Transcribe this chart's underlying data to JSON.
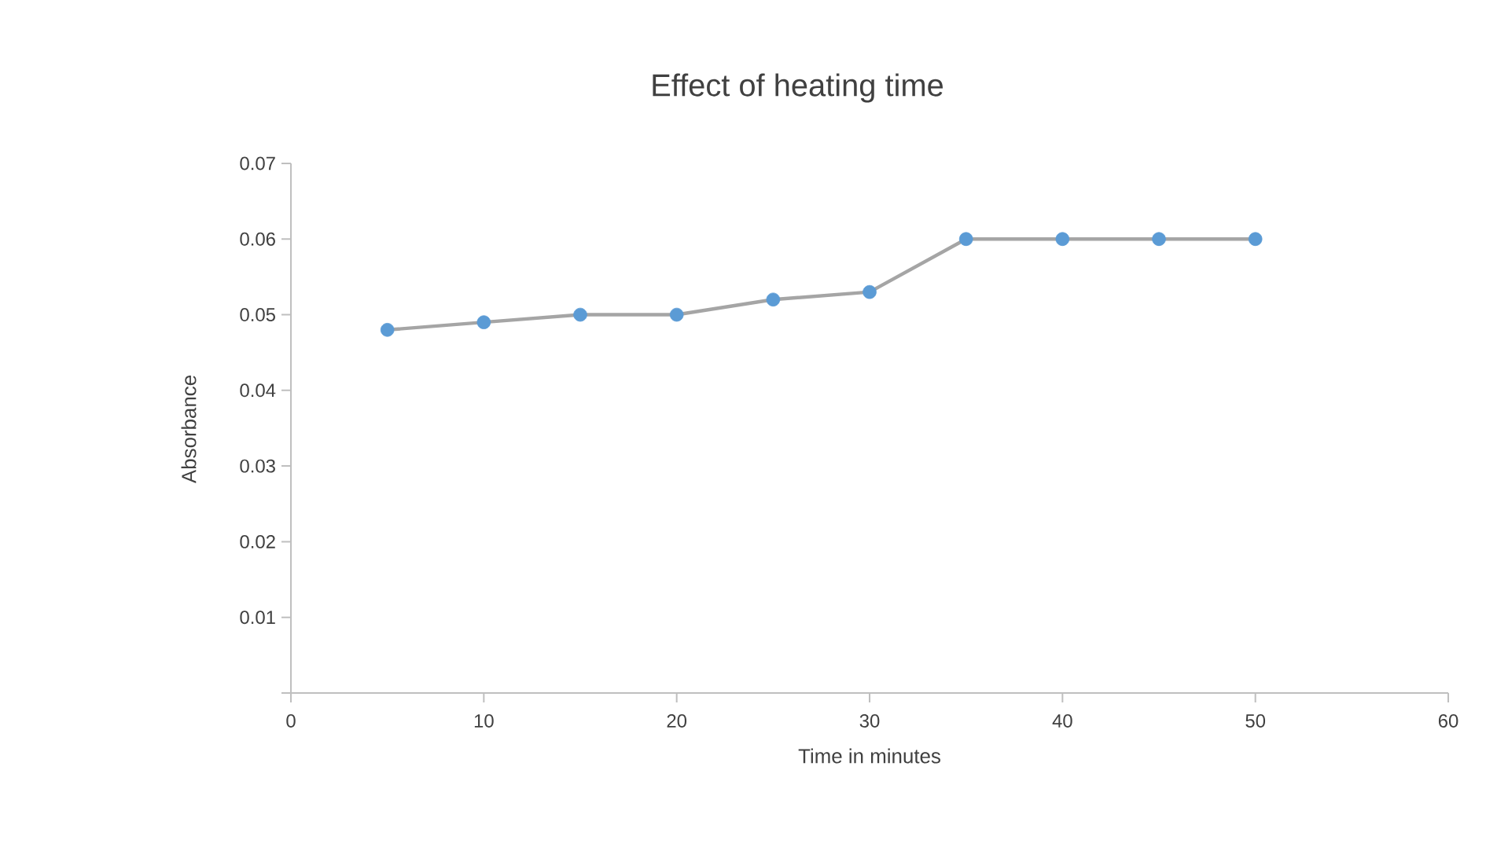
{
  "chart_data": {
    "type": "line",
    "title": "Effect of heating time",
    "xlabel": "Time  in minutes",
    "ylabel": "Absorbance",
    "x": [
      5,
      10,
      15,
      20,
      25,
      30,
      35,
      40,
      45,
      50
    ],
    "series": [
      {
        "color": "#a5a5a5",
        "colors": [
          "#5b9bd5",
          "#5b9bd5",
          "#5b9bd5",
          "#5b9bd5",
          "#5b9bd5",
          "#5b9bd5",
          "#5b9bd5",
          "#5b9bd5",
          "#5b9bd5",
          "#5b9bd5"
        ],
        "values": [
          0.048,
          0.049,
          0.05,
          0.05,
          0.052,
          0.053,
          0.06,
          0.06,
          0.06,
          0.06
        ]
      }
    ],
    "marker": "circle",
    "line_style": "solid",
    "xlim": [
      0,
      60
    ],
    "xticks": [
      0,
      10,
      20,
      30,
      40,
      50,
      60
    ],
    "ylim": [
      0,
      0.07
    ],
    "yticks": [
      {
        "value": 0,
        "label": null
      },
      0.01,
      0.02,
      0.03,
      0.04,
      0.05,
      0.06,
      0.07
    ]
  }
}
